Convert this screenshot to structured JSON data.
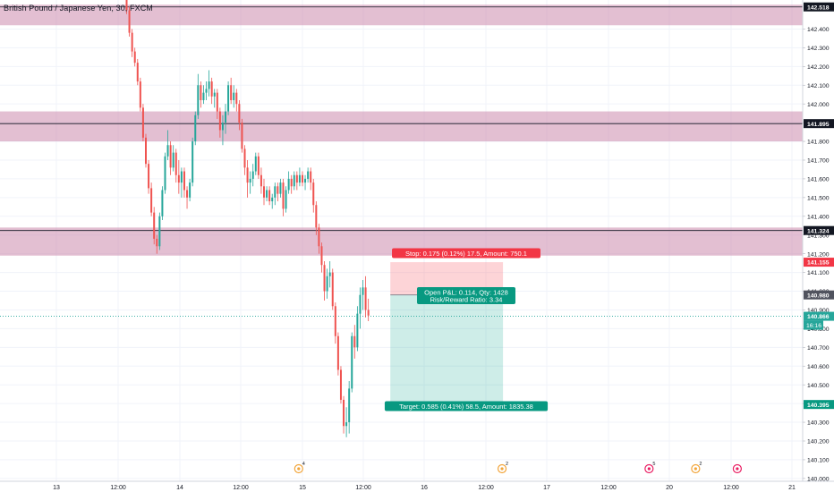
{
  "chart_title": "British Pound / Japanese Yen, 30, FXCM",
  "chart_data": {
    "type": "candlestick",
    "title": "British Pound / Japanese Yen, 30, FXCM",
    "ylim": [
      139.985,
      142.555
    ],
    "y_ticks": [
      140.0,
      140.1,
      140.2,
      140.3,
      140.4,
      140.5,
      140.6,
      140.7,
      140.8,
      140.9,
      141.0,
      141.1,
      141.2,
      141.3,
      141.4,
      141.5,
      141.6,
      141.7,
      141.8,
      141.9,
      142.0,
      142.1,
      142.2,
      142.3,
      142.4
    ],
    "y_tick_labels": [
      "140.000",
      "140.100",
      "140.200",
      "140.300",
      "140.400",
      "140.500",
      "140.600",
      "140.700",
      "140.800",
      "140.900",
      "141.000",
      "141.100",
      "141.200",
      "141.300",
      "141.400",
      "141.500",
      "141.600",
      "141.700",
      "141.800",
      "141.900",
      "142.000",
      "142.100",
      "142.200",
      "142.300",
      "142.400"
    ],
    "x_tick_labels": [
      "13",
      "12:00",
      "14",
      "12:00",
      "15",
      "12:00",
      "16",
      "12:00",
      "17",
      "12:00",
      "20",
      "12:00",
      "21"
    ],
    "grid": true,
    "bar_count": 118,
    "zones": [
      {
        "from": 142.42,
        "to": 142.53
      },
      {
        "from": 141.8,
        "to": 141.96
      },
      {
        "from": 141.19,
        "to": 141.34
      }
    ],
    "horizontal_lines": [
      {
        "price": 142.518,
        "label": "142.518",
        "color": "#131722"
      },
      {
        "price": 141.895,
        "label": "141.895",
        "color": "#131722"
      },
      {
        "price": 141.324,
        "label": "141.324",
        "color": "#131722"
      }
    ],
    "price_tags": [
      {
        "price": 141.155,
        "label": "141.155",
        "color": "#f23645"
      },
      {
        "price": 140.98,
        "label": "140.980",
        "color": "#50535e"
      },
      {
        "price": 140.866,
        "label": "140.866",
        "color": "#26a69a"
      },
      {
        "price": 140.395,
        "label": "140.395",
        "color": "#089981"
      }
    ],
    "countdown": "16:16",
    "last_price": 140.866,
    "position": {
      "type": "short",
      "entry": 140.98,
      "stop": 141.155,
      "target": 140.395,
      "stop_label": "Stop: 0.175 (0.12%) 17.5, Amount: 750.1",
      "target_label": "Target: 0.585 (0.41%) 58.5, Amount: 1835.38",
      "pnl_label": "Open P&L: 0.114, Qty: 1428",
      "rr_label": "Risk/Reward Ratio: 3.34",
      "start_bar": 96,
      "end_bar": 137
    },
    "candles": [
      [
        142.59,
        142.61,
        142.48,
        142.5
      ],
      [
        142.5,
        142.52,
        142.36,
        142.38
      ],
      [
        142.38,
        142.4,
        142.25,
        142.28
      ],
      [
        142.28,
        142.3,
        142.2,
        142.22
      ],
      [
        142.22,
        142.24,
        142.1,
        142.12
      ],
      [
        142.12,
        142.14,
        141.96,
        141.98
      ],
      [
        141.98,
        142.0,
        141.8,
        141.82
      ],
      [
        141.82,
        141.84,
        141.66,
        141.68
      ],
      [
        141.68,
        141.7,
        141.52,
        141.55
      ],
      [
        141.55,
        141.58,
        141.4,
        141.42
      ],
      [
        141.42,
        141.45,
        141.25,
        141.28
      ],
      [
        141.28,
        141.3,
        141.2,
        141.24
      ],
      [
        141.24,
        141.42,
        141.22,
        141.4
      ],
      [
        141.4,
        141.56,
        141.38,
        141.54
      ],
      [
        141.54,
        141.74,
        141.52,
        141.72
      ],
      [
        141.72,
        141.86,
        141.7,
        141.78
      ],
      [
        141.78,
        141.8,
        141.62,
        141.66
      ],
      [
        141.66,
        141.78,
        141.64,
        141.74
      ],
      [
        141.74,
        141.76,
        141.58,
        141.62
      ],
      [
        141.62,
        141.7,
        141.52,
        141.58
      ],
      [
        141.58,
        141.66,
        141.5,
        141.64
      ],
      [
        141.64,
        141.66,
        141.5,
        141.54
      ],
      [
        141.54,
        141.56,
        141.44,
        141.5
      ],
      [
        141.5,
        141.6,
        141.48,
        141.58
      ],
      [
        141.58,
        141.82,
        141.56,
        141.8
      ],
      [
        141.8,
        141.96,
        141.78,
        141.94
      ],
      [
        141.94,
        142.16,
        141.92,
        142.1
      ],
      [
        142.1,
        142.12,
        141.98,
        142.02
      ],
      [
        142.02,
        142.1,
        142.0,
        142.06
      ],
      [
        142.06,
        142.12,
        142.02,
        142.08
      ],
      [
        142.08,
        142.18,
        142.04,
        142.12
      ],
      [
        142.12,
        142.14,
        142.0,
        142.04
      ],
      [
        142.04,
        142.08,
        141.98,
        142.06
      ],
      [
        142.06,
        142.08,
        141.92,
        141.96
      ],
      [
        141.96,
        141.98,
        141.82,
        141.86
      ],
      [
        141.86,
        141.94,
        141.78,
        141.9
      ],
      [
        141.9,
        142.0,
        141.84,
        141.96
      ],
      [
        141.96,
        142.12,
        141.94,
        142.1
      ],
      [
        142.1,
        142.14,
        142.0,
        142.02
      ],
      [
        142.02,
        142.1,
        141.98,
        142.06
      ],
      [
        142.06,
        142.08,
        141.96,
        142.0
      ],
      [
        142.0,
        142.02,
        141.86,
        141.9
      ],
      [
        141.9,
        141.92,
        141.74,
        141.76
      ],
      [
        141.76,
        141.78,
        141.62,
        141.66
      ],
      [
        141.66,
        141.7,
        141.5,
        141.58
      ],
      [
        141.58,
        141.64,
        141.52,
        141.6
      ],
      [
        141.6,
        141.68,
        141.56,
        141.64
      ],
      [
        141.64,
        141.74,
        141.62,
        141.72
      ],
      [
        141.72,
        141.74,
        141.6,
        141.62
      ],
      [
        141.62,
        141.66,
        141.52,
        141.56
      ],
      [
        141.56,
        141.6,
        141.46,
        141.5
      ],
      [
        141.5,
        141.56,
        141.48,
        141.54
      ],
      [
        141.54,
        141.56,
        141.46,
        141.48
      ],
      [
        141.48,
        141.52,
        141.44,
        141.5
      ],
      [
        141.5,
        141.58,
        141.46,
        141.56
      ],
      [
        141.56,
        141.58,
        141.48,
        141.52
      ],
      [
        141.52,
        141.6,
        141.5,
        141.58
      ],
      [
        141.58,
        141.6,
        141.4,
        141.44
      ],
      [
        141.44,
        141.56,
        141.42,
        141.54
      ],
      [
        141.54,
        141.64,
        141.52,
        141.6
      ],
      [
        141.6,
        141.62,
        141.52,
        141.56
      ],
      [
        141.56,
        141.64,
        141.54,
        141.62
      ],
      [
        141.62,
        141.64,
        141.54,
        141.58
      ],
      [
        141.58,
        141.66,
        141.56,
        141.62
      ],
      [
        141.62,
        141.64,
        141.56,
        141.58
      ],
      [
        141.58,
        141.62,
        141.54,
        141.6
      ],
      [
        141.6,
        141.66,
        141.58,
        141.64
      ],
      [
        141.64,
        141.66,
        141.54,
        141.58
      ],
      [
        141.58,
        141.6,
        141.42,
        141.46
      ],
      [
        141.46,
        141.48,
        141.3,
        141.34
      ],
      [
        141.34,
        141.36,
        141.2,
        141.24
      ],
      [
        141.24,
        141.26,
        141.1,
        141.14
      ],
      [
        141.14,
        141.16,
        140.95,
        141.0
      ],
      [
        141.0,
        141.12,
        140.96,
        141.08
      ],
      [
        141.08,
        141.16,
        141.02,
        141.1
      ],
      [
        141.1,
        141.12,
        140.9,
        140.92
      ],
      [
        140.92,
        140.94,
        140.72,
        140.76
      ],
      [
        140.76,
        140.78,
        140.55,
        140.58
      ],
      [
        140.58,
        140.6,
        140.4,
        140.42
      ],
      [
        140.42,
        140.44,
        140.24,
        140.28
      ],
      [
        140.28,
        140.38,
        140.22,
        140.3
      ],
      [
        140.3,
        140.52,
        140.24,
        140.48
      ],
      [
        140.48,
        140.78,
        140.46,
        140.76
      ],
      [
        140.76,
        140.82,
        140.64,
        140.7
      ],
      [
        140.7,
        140.92,
        140.68,
        140.88
      ],
      [
        140.88,
        141.02,
        140.8,
        140.98
      ],
      [
        140.98,
        141.06,
        140.9,
        141.02
      ],
      [
        141.02,
        141.08,
        140.86,
        140.9
      ],
      [
        140.9,
        140.96,
        140.84,
        140.87
      ]
    ],
    "event_markers": [
      {
        "bar": 100,
        "color": "#f2a53a",
        "count": "4"
      },
      {
        "bar": 183,
        "color": "#f2a53a",
        "count": "2"
      },
      {
        "bar": 243,
        "color": "#e91e63",
        "count": "5"
      },
      {
        "bar": 262,
        "color": "#f2a53a",
        "count": "2"
      },
      {
        "bar": 279,
        "color": "#e91e63",
        "count": ""
      }
    ]
  }
}
